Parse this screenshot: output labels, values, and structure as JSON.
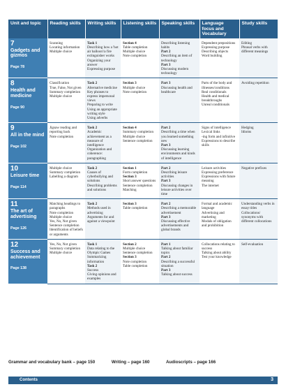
{
  "headers": [
    "Unit and topic",
    "Reading skills",
    "Writing skills",
    "Listening skills",
    "Speaking skills",
    "Language focus and Vocabulary",
    "Study skills"
  ],
  "units": [
    {
      "number": "7",
      "title": "Gadgets and gizmos",
      "page": "Page 78",
      "reading": [
        "Scanning",
        "Locating information",
        "Multiple choice"
      ],
      "writing": [
        {
          "t": "Task 1",
          "b": true
        },
        {
          "t": "Describing how a 'hot air balloon'/a fire extinguisher works"
        },
        {
          "t": "Organizing your answer"
        },
        {
          "t": "Expressing purpose"
        }
      ],
      "listening": [
        {
          "t": "Section 4",
          "b": true
        },
        {
          "t": "Table completion"
        },
        {
          "t": "Multiple choice"
        },
        {
          "t": "Note completion"
        }
      ],
      "speaking": [
        {
          "t": "Describing listening habits"
        },
        {
          "t": "Part 2",
          "b": true
        },
        {
          "t": "Describing an item of technology"
        },
        {
          "t": "Part 3",
          "b": true
        },
        {
          "t": "Discussing modern technology"
        }
      ],
      "language": [
        "Dependent prepositions",
        "Expressing purpose",
        "Describing objects",
        "Word building"
      ],
      "study": [
        "Editing",
        "Phrasal verbs with different meanings"
      ]
    },
    {
      "number": "8",
      "title": "Health and medicine",
      "page": "Page 90",
      "reading": [
        "Classification",
        "True, False, Not given",
        "Summary completion",
        "Multiple choice"
      ],
      "writing": [
        {
          "t": "Task 2",
          "b": true
        },
        {
          "t": "Alternative medicine"
        },
        {
          "t": "Key phrases to express impersonal views"
        },
        {
          "t": "Preparing to write"
        },
        {
          "t": "Using an appropriate writing style"
        },
        {
          "t": "Using adverbs"
        }
      ],
      "listening": [
        {
          "t": "Section 3",
          "b": true
        },
        {
          "t": "Multiple choice"
        },
        {
          "t": "Note completion"
        }
      ],
      "speaking": [
        {
          "t": "Part 3",
          "b": true
        },
        {
          "t": "Discussing health and healthcare"
        }
      ],
      "language": [
        "Parts of the body and illnesses/conditions",
        "Real conditionals",
        "Health and medical breakthroughs",
        "Unreal conditionals"
      ],
      "study": [
        "Avoiding repetition"
      ]
    },
    {
      "number": "9",
      "title": "All in the mind",
      "page": "Page 102",
      "reading": [
        "Jigsaw reading and reporting back",
        "Note completion"
      ],
      "writing": [
        {
          "t": "Task 2",
          "b": true
        },
        {
          "t": "Academic achievement as a measure of intelligence"
        },
        {
          "t": "Organization and coherence: paragraphing"
        }
      ],
      "listening": [
        {
          "t": "Section 4",
          "b": true
        },
        {
          "t": "Summary completion"
        },
        {
          "t": "Multiple choice"
        },
        {
          "t": "Sentence completion"
        }
      ],
      "speaking": [
        {
          "t": "Part 2",
          "b": true
        },
        {
          "t": "Describing a time when you learned something new"
        },
        {
          "t": "Part 3",
          "b": true
        },
        {
          "t": "Discussing learning environments and kinds of intelligence"
        }
      ],
      "language": [
        "Signs of intelligence",
        "Lexical links",
        "-ing form and infinitive",
        "Expressions to describe skills"
      ],
      "study": [
        "Hedging",
        "Idioms"
      ]
    },
    {
      "number": "10",
      "title": "Leisure time",
      "page": "Page 114",
      "reading": [
        "Multiple choice",
        "Summary completion",
        "Labelling a diagram"
      ],
      "writing": [
        {
          "t": "Task 2",
          "b": true
        },
        {
          "t": "Causes of cyberbullying and solutions"
        },
        {
          "t": "Describing problems and solutions"
        }
      ],
      "listening": [
        {
          "t": "Section 1",
          "b": true
        },
        {
          "t": "Form completion"
        },
        {
          "t": "Section 3",
          "b": true
        },
        {
          "t": "Short answer questions"
        },
        {
          "t": "Sentence completion"
        },
        {
          "t": "Matching"
        }
      ],
      "speaking": [
        {
          "t": "Part 2",
          "b": true
        },
        {
          "t": "Describing leisure activities"
        },
        {
          "t": "Part 3",
          "b": true
        },
        {
          "t": "Discussing changes in leisure activities over time"
        }
      ],
      "language": [
        "Leisure activities",
        "Expressing preference",
        "Expressions with future meaning",
        "The internet"
      ],
      "study": [
        "Negative prefixes"
      ]
    },
    {
      "number": "11",
      "title": "The art of advertising",
      "page": "Page 126",
      "reading": [
        "Matching headings to paragraphs",
        "Note completion",
        "Multiple choice",
        "Yes, No, Not given",
        "Sentence completion",
        "Identification of beliefs or arguments"
      ],
      "writing": [
        {
          "t": "Task 2",
          "b": true
        },
        {
          "t": "Methods used in advertising"
        },
        {
          "t": "Arguments for and against a viewpoint"
        }
      ],
      "listening": [
        {
          "t": "Section 3",
          "b": true
        },
        {
          "t": "Table completion"
        }
      ],
      "speaking": [
        {
          "t": "Part 2",
          "b": true
        },
        {
          "t": "Describing a memorable advertisement"
        },
        {
          "t": "Part 3",
          "b": true
        },
        {
          "t": "Discussing effective advertisements and global brands"
        }
      ],
      "language": [
        "Formal and academic language",
        "Advertising and marketing",
        "Modals of obligation and prohibition"
      ],
      "study": [
        "Understanding verbs in essay titles",
        "Collocations/ synonyms with different collocations"
      ]
    },
    {
      "number": "12",
      "title": "Success and achievement",
      "page": "Page 138",
      "reading": [
        "Yes, No, Not given",
        "Summary completion",
        "Multiple choice"
      ],
      "writing": [
        {
          "t": "Task 1",
          "b": true
        },
        {
          "t": "Data relating to the Olympic Games"
        },
        {
          "t": "Summarizing information"
        },
        {
          "t": "Task 2",
          "b": true
        },
        {
          "t": "Success"
        },
        {
          "t": "Giving opinions and examples"
        }
      ],
      "listening": [
        {
          "t": "Section 2",
          "b": true
        },
        {
          "t": "Multiple choice"
        },
        {
          "t": "Sentence completion"
        },
        {
          "t": "Section 3",
          "b": true
        },
        {
          "t": "Note completion"
        },
        {
          "t": "Table completion"
        }
      ],
      "speaking": [
        {
          "t": "Part 1",
          "b": true
        },
        {
          "t": "Talking about familiar topics"
        },
        {
          "t": "Part 2",
          "b": true
        },
        {
          "t": "Describing a successful situation"
        },
        {
          "t": "Part 3",
          "b": true
        },
        {
          "t": "Talking about success"
        }
      ],
      "language": [
        "Collocations relating to success",
        "Talking about ability",
        "Test your knowledge"
      ],
      "study": [
        "Self-evaluation"
      ]
    }
  ],
  "footer": {
    "grammar": "Grammar and vocabulary bank – page 150",
    "writing": "Writing – page 160",
    "audioscripts": "Audioscripts – page 166"
  },
  "bottom_bar": {
    "label": "Contents",
    "page_number": "3"
  }
}
